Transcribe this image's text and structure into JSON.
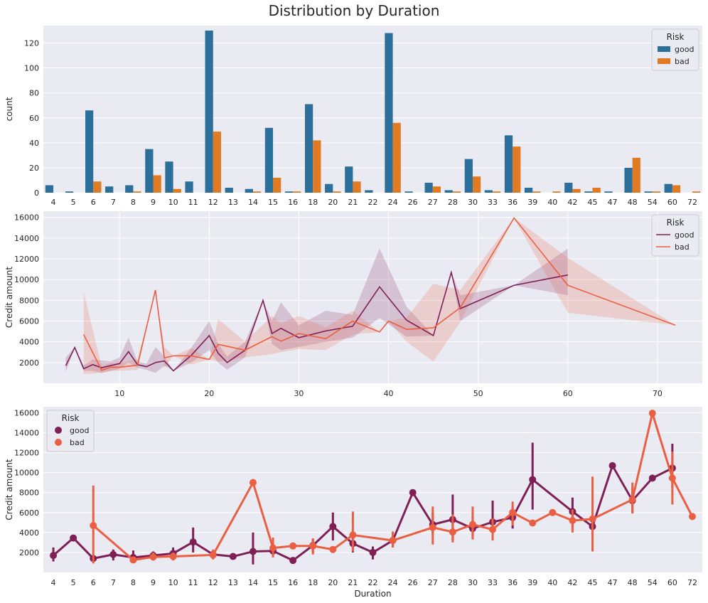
{
  "figure_title": "Distribution by Duration",
  "colors": {
    "good_bar": "#2b6f9a",
    "bad_bar": "#e07b24",
    "good_line": "#7f1f56",
    "bad_line": "#ea5f42",
    "panel_bg": "#eaeaf2",
    "grid": "#ffffff"
  },
  "chart_data": [
    {
      "type": "bar",
      "ylabel": "count",
      "xlabel": "",
      "ylim": [
        0,
        134
      ],
      "yticks": [
        0,
        20,
        40,
        60,
        80,
        100,
        120
      ],
      "legend": {
        "title": "Risk",
        "placement": "top-right",
        "entries": [
          "good",
          "bad"
        ]
      },
      "categories": [
        "4",
        "5",
        "6",
        "7",
        "8",
        "9",
        "10",
        "11",
        "12",
        "13",
        "14",
        "15",
        "16",
        "18",
        "20",
        "21",
        "22",
        "24",
        "26",
        "27",
        "28",
        "30",
        "33",
        "36",
        "39",
        "40",
        "42",
        "45",
        "47",
        "48",
        "54",
        "60",
        "72"
      ],
      "series": [
        {
          "name": "good",
          "values": [
            6,
            1,
            66,
            5,
            6,
            35,
            25,
            9,
            130,
            4,
            3,
            52,
            1,
            71,
            7,
            21,
            2,
            128,
            1,
            8,
            2,
            27,
            2,
            46,
            4,
            0,
            8,
            1,
            1,
            20,
            1,
            7,
            0
          ]
        },
        {
          "name": "bad",
          "values": [
            0,
            0,
            9,
            0,
            1,
            14,
            3,
            0,
            49,
            0,
            1,
            12,
            1,
            42,
            1,
            9,
            0,
            56,
            0,
            5,
            1,
            13,
            1,
            37,
            1,
            1,
            3,
            4,
            0,
            28,
            1,
            6,
            1
          ]
        }
      ]
    },
    {
      "type": "line",
      "ylabel": "Credit amount",
      "xlabel": "",
      "xlim": [
        1.5,
        75
      ],
      "ylim": [
        0,
        16600
      ],
      "xticks": [
        10,
        20,
        30,
        40,
        50,
        60,
        70
      ],
      "yticks": [
        2000,
        4000,
        6000,
        8000,
        10000,
        12000,
        14000,
        16000
      ],
      "legend": {
        "title": "Risk",
        "placement": "top-right",
        "entries": [
          "good",
          "bad"
        ]
      },
      "series": [
        {
          "name": "good",
          "x": [
            4,
            5,
            6,
            7,
            8,
            9,
            10,
            11,
            12,
            13,
            14,
            15,
            16,
            18,
            20,
            21,
            22,
            24,
            26,
            27,
            28,
            30,
            33,
            36,
            39,
            42,
            45,
            47,
            48,
            54,
            60
          ],
          "y": [
            1700,
            3450,
            1400,
            1800,
            1500,
            1700,
            1900,
            3050,
            1800,
            1600,
            2000,
            2150,
            1200,
            2700,
            4600,
            2900,
            2000,
            3200,
            8000,
            4800,
            5300,
            4400,
            5050,
            5500,
            9300,
            6100,
            4600,
            10700,
            7200,
            9450,
            10450
          ],
          "low": [
            1100,
            3450,
            1200,
            1200,
            1000,
            1200,
            1400,
            2000,
            1500,
            1300,
            1000,
            1700,
            1200,
            2000,
            3200,
            2000,
            1300,
            2500,
            8000,
            3800,
            3200,
            3500,
            4000,
            4400,
            6300,
            4500,
            4600,
            10700,
            6000,
            9450,
            8500
          ],
          "high": [
            2500,
            3450,
            1700,
            2300,
            2200,
            2100,
            2500,
            4400,
            2100,
            1900,
            3500,
            2600,
            1200,
            3400,
            6000,
            3800,
            2600,
            4000,
            8000,
            6000,
            7800,
            5600,
            7000,
            6600,
            13000,
            7400,
            4600,
            10700,
            8500,
            9450,
            13000
          ]
        },
        {
          "name": "bad",
          "x": [
            6,
            8,
            9,
            10,
            12,
            14,
            15,
            16,
            18,
            20,
            21,
            24,
            27,
            28,
            30,
            33,
            36,
            39,
            40,
            42,
            45,
            48,
            54,
            60,
            72
          ],
          "y": [
            4700,
            1250,
            1550,
            1550,
            1750,
            9000,
            2450,
            2650,
            2650,
            2300,
            3750,
            3200,
            4500,
            4050,
            4800,
            4300,
            6000,
            4950,
            6000,
            5200,
            5350,
            7300,
            15950,
            9450,
            5600
          ],
          "low": [
            900,
            1000,
            1200,
            1200,
            1300,
            9000,
            1500,
            2650,
            1800,
            2300,
            2100,
            2500,
            2800,
            3000,
            3300,
            3200,
            4700,
            4950,
            6000,
            4000,
            2100,
            5900,
            15950,
            6800,
            5600
          ],
          "high": [
            8800,
            1600,
            2000,
            2000,
            2300,
            9000,
            3500,
            2650,
            3400,
            2300,
            6200,
            4000,
            6500,
            5800,
            6500,
            5400,
            7000,
            4950,
            6000,
            6300,
            9600,
            9000,
            15950,
            12100,
            5600
          ]
        }
      ]
    },
    {
      "type": "line",
      "ylabel": "Credit amount",
      "xlabel": "Duration",
      "ylim": [
        0,
        16600
      ],
      "yticks": [
        2000,
        4000,
        6000,
        8000,
        10000,
        12000,
        14000,
        16000
      ],
      "legend": {
        "title": "Risk",
        "placement": "top-left",
        "entries": [
          "good",
          "bad"
        ]
      },
      "categories": [
        "4",
        "5",
        "6",
        "7",
        "8",
        "9",
        "10",
        "11",
        "12",
        "13",
        "14",
        "15",
        "16",
        "18",
        "20",
        "21",
        "22",
        "24",
        "26",
        "27",
        "28",
        "30",
        "33",
        "36",
        "39",
        "40",
        "42",
        "45",
        "47",
        "48",
        "54",
        "60",
        "72"
      ],
      "series": [
        {
          "name": "good",
          "x": [
            "4",
            "5",
            "6",
            "7",
            "8",
            "9",
            "10",
            "11",
            "12",
            "13",
            "14",
            "15",
            "16",
            "18",
            "20",
            "21",
            "22",
            "24",
            "26",
            "27",
            "28",
            "30",
            "33",
            "36",
            "39",
            "42",
            "45",
            "47",
            "48",
            "54",
            "60"
          ],
          "y": [
            1700,
            3450,
            1400,
            1800,
            1500,
            1700,
            1900,
            3050,
            1800,
            1600,
            2100,
            2150,
            1200,
            2700,
            4600,
            2900,
            2000,
            3200,
            8000,
            4800,
            5300,
            4400,
            5050,
            5500,
            9300,
            6100,
            4600,
            10700,
            7200,
            9450,
            10450
          ],
          "low": [
            1100,
            3450,
            1200,
            1200,
            1000,
            1200,
            1400,
            2000,
            1500,
            1300,
            800,
            1700,
            1200,
            2000,
            3200,
            2000,
            1300,
            2500,
            8000,
            3800,
            3200,
            3500,
            4000,
            4400,
            6300,
            4500,
            4600,
            10700,
            6000,
            9450,
            8500
          ],
          "high": [
            2500,
            3450,
            1700,
            2300,
            2200,
            2100,
            2500,
            4500,
            2100,
            1900,
            4000,
            2600,
            1200,
            3400,
            6000,
            3800,
            2600,
            4000,
            8000,
            6000,
            7800,
            5600,
            7200,
            6600,
            13000,
            7500,
            4600,
            10700,
            8500,
            9450,
            12900
          ]
        },
        {
          "name": "bad",
          "x": [
            "6",
            "8",
            "9",
            "10",
            "12",
            "14",
            "15",
            "16",
            "18",
            "20",
            "21",
            "24",
            "27",
            "28",
            "30",
            "33",
            "36",
            "39",
            "40",
            "42",
            "45",
            "48",
            "54",
            "60",
            "72"
          ],
          "y": [
            4700,
            1250,
            1550,
            1600,
            1750,
            9000,
            2450,
            2650,
            2650,
            2300,
            3750,
            3200,
            4500,
            4050,
            4800,
            4300,
            6000,
            4950,
            6000,
            5200,
            5350,
            7300,
            15950,
            9450,
            5600
          ],
          "low": [
            900,
            1000,
            1200,
            1200,
            1300,
            9000,
            1500,
            2650,
            1800,
            2300,
            2100,
            2500,
            2800,
            3000,
            3300,
            3200,
            4700,
            4950,
            6000,
            4000,
            2100,
            5900,
            15950,
            6800,
            5600
          ],
          "high": [
            8700,
            1600,
            2000,
            2000,
            2300,
            9000,
            3500,
            2650,
            3400,
            2300,
            6100,
            4100,
            6600,
            5800,
            6600,
            5400,
            7100,
            4950,
            6000,
            6300,
            9600,
            9000,
            15950,
            12100,
            5600
          ]
        }
      ]
    }
  ]
}
